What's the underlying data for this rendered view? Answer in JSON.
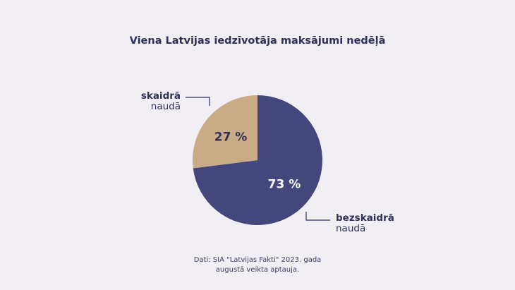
{
  "title": "Viena Latvijas iedzīvotāja maksājumi nedēļā",
  "source": {
    "line1": "Dati: SIA \"Latvijas Fakti\" 2023. gada",
    "line2": "augustā veikta aptauja."
  },
  "colors": {
    "cash": "#c9ab86",
    "cashless": "#44477c",
    "label_dark": "#2e2f5b",
    "label_light": "#ffffff",
    "background": "#f1eff3"
  },
  "chart_data": {
    "type": "pie",
    "title": "Viena Latvijas iedzīvotāja maksājumi nedēļā",
    "slices": [
      {
        "key": "cash",
        "label_bold": "skaidrā",
        "label_rest": "naudā",
        "value": 27,
        "value_label": "27 %"
      },
      {
        "key": "cashless",
        "label_bold": "bezskaidrā",
        "label_rest": "naudā",
        "value": 73,
        "value_label": "73 %"
      }
    ]
  }
}
